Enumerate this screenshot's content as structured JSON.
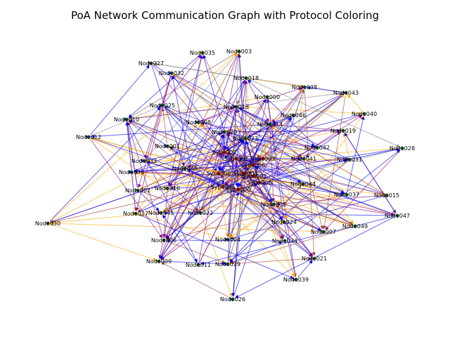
{
  "title": "PoA Network Communication Graph with Protocol Coloring",
  "colors": {
    "node": "#1a6b1a",
    "sybil_node": "#cc0000",
    "edge_blue": "#0000ee",
    "edge_orange": "#ffa500",
    "edge_purple": "#800080",
    "edge_brown": "#a0402a",
    "edge_gray": "#808080"
  },
  "nodes": [
    {
      "id": "Node000",
      "label": "Node000"
    },
    {
      "id": "Node001",
      "label": "Node001"
    },
    {
      "id": "Node002",
      "label": "Node002"
    },
    {
      "id": "Node003",
      "label": "Node003"
    },
    {
      "id": "Node004",
      "label": "Node004"
    },
    {
      "id": "Node005",
      "label": "Node005"
    },
    {
      "id": "Node006",
      "label": "Node006"
    },
    {
      "id": "Node007",
      "label": "Node007"
    },
    {
      "id": "Node008",
      "label": "Node008"
    },
    {
      "id": "Node009",
      "label": "Node009"
    },
    {
      "id": "Node010",
      "label": "Node010"
    },
    {
      "id": "Node011",
      "label": "Node011"
    },
    {
      "id": "Node012",
      "label": "Node012"
    },
    {
      "id": "Node013",
      "label": "Node013"
    },
    {
      "id": "Node014",
      "label": "Node014"
    },
    {
      "id": "Node015",
      "label": "Node015"
    },
    {
      "id": "Node016",
      "label": "Node016"
    },
    {
      "id": "Node017",
      "label": "Node017"
    },
    {
      "id": "Node018",
      "label": "Node018"
    },
    {
      "id": "Node019",
      "label": "Node019"
    },
    {
      "id": "Node020",
      "label": "Node020"
    },
    {
      "id": "Node021",
      "label": "Node021"
    },
    {
      "id": "Node022",
      "label": "Node022"
    },
    {
      "id": "Node023",
      "label": "Node023"
    },
    {
      "id": "Node024",
      "label": "Node024"
    },
    {
      "id": "Node025",
      "label": "Node025"
    },
    {
      "id": "Node026",
      "label": "Node026"
    },
    {
      "id": "Node027",
      "label": "Node027"
    },
    {
      "id": "Node028",
      "label": "Node028"
    },
    {
      "id": "Node029",
      "label": "Node029"
    },
    {
      "id": "Node030",
      "label": "Node030"
    },
    {
      "id": "Node031",
      "label": "Node031"
    },
    {
      "id": "Node032",
      "label": "Node032"
    },
    {
      "id": "Node033",
      "label": "Node033"
    },
    {
      "id": "Node034",
      "label": "Node034"
    },
    {
      "id": "Node035",
      "label": "Node035"
    },
    {
      "id": "Node036",
      "label": "Node036"
    },
    {
      "id": "Node037",
      "label": "Node037"
    },
    {
      "id": "Node038",
      "label": "Node038"
    },
    {
      "id": "Node039",
      "label": "Node039"
    },
    {
      "id": "Node040",
      "label": "Node040"
    },
    {
      "id": "Node041",
      "label": "Node041"
    },
    {
      "id": "Node042",
      "label": "Node042"
    },
    {
      "id": "Node043",
      "label": "Node043"
    },
    {
      "id": "Node044",
      "label": "Node044"
    },
    {
      "id": "Node045",
      "label": "Node045"
    },
    {
      "id": "Node046",
      "label": "Node046"
    },
    {
      "id": "Node047",
      "label": "Node047"
    },
    {
      "id": "Node048",
      "label": "Node048"
    },
    {
      "id": "Node049",
      "label": "Node049"
    },
    {
      "id": "Sybil000",
      "label": "Sybil000",
      "sybil": true
    },
    {
      "id": "Sybil001",
      "label": "Sybil001",
      "sybil": true
    },
    {
      "id": "Sybil002",
      "label": "Sybil002",
      "sybil": true
    },
    {
      "id": "Sybil003",
      "label": "Sybil003",
      "sybil": true
    },
    {
      "id": "Sybil004",
      "label": "Sybil004",
      "sybil": true
    },
    {
      "id": "Sybil005",
      "label": "Sybil005",
      "sybil": true
    },
    {
      "id": "Sybil006",
      "label": "Sybil006",
      "sybil": true
    },
    {
      "id": "Sybil007",
      "label": "Sybil007",
      "sybil": true
    },
    {
      "id": "Sybil008",
      "label": "Sybil008",
      "sybil": true
    },
    {
      "id": "Sybil009",
      "label": "Sybil009",
      "sybil": true
    }
  ]
}
